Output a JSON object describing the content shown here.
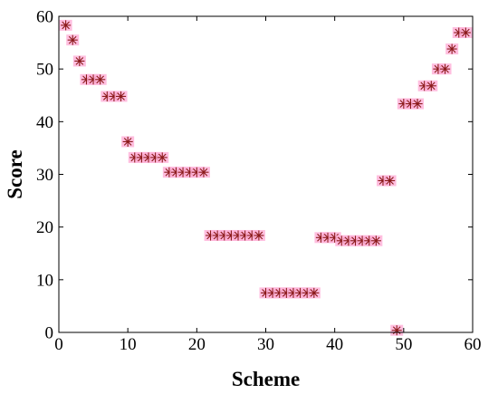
{
  "chart_data": {
    "type": "scatter",
    "title": "",
    "xlabel": "Scheme",
    "ylabel": "Score",
    "xlim": [
      0,
      60
    ],
    "ylim": [
      0,
      60
    ],
    "xticks": [
      0,
      10,
      20,
      30,
      40,
      50,
      60
    ],
    "yticks": [
      0,
      10,
      20,
      30,
      40,
      50,
      60
    ],
    "grid": false,
    "legend": "none",
    "marker": "asterisk",
    "colors": {
      "marker": "#8b1a1a",
      "highlight": "#ffb3d9",
      "axis": "#000000"
    },
    "series": [
      {
        "x": [
          1,
          2,
          3,
          4,
          5,
          6,
          7,
          8,
          9,
          10,
          11,
          12,
          13,
          14,
          15,
          16,
          17,
          18,
          19,
          20,
          21,
          22,
          23,
          24,
          25,
          26,
          27,
          28,
          29,
          30,
          31,
          32,
          33,
          34,
          35,
          36,
          37,
          38,
          39,
          40,
          41,
          42,
          43,
          44,
          45,
          46,
          47,
          48,
          49,
          50,
          51,
          52,
          53,
          54,
          55,
          56,
          57,
          58,
          59
        ],
        "y": [
          58.3,
          55.5,
          51.5,
          48.0,
          48.0,
          48.0,
          44.8,
          44.8,
          44.8,
          36.2,
          33.2,
          33.2,
          33.2,
          33.2,
          33.2,
          30.4,
          30.4,
          30.4,
          30.4,
          30.4,
          30.4,
          18.4,
          18.4,
          18.4,
          18.4,
          18.4,
          18.4,
          18.4,
          18.4,
          7.5,
          7.5,
          7.5,
          7.5,
          7.5,
          7.5,
          7.5,
          7.5,
          18.0,
          18.0,
          18.0,
          17.4,
          17.4,
          17.4,
          17.4,
          17.4,
          17.4,
          28.8,
          28.8,
          0.4,
          43.4,
          43.4,
          43.4,
          46.8,
          46.8,
          50.0,
          50.0,
          53.8,
          56.9,
          56.9
        ]
      }
    ]
  }
}
